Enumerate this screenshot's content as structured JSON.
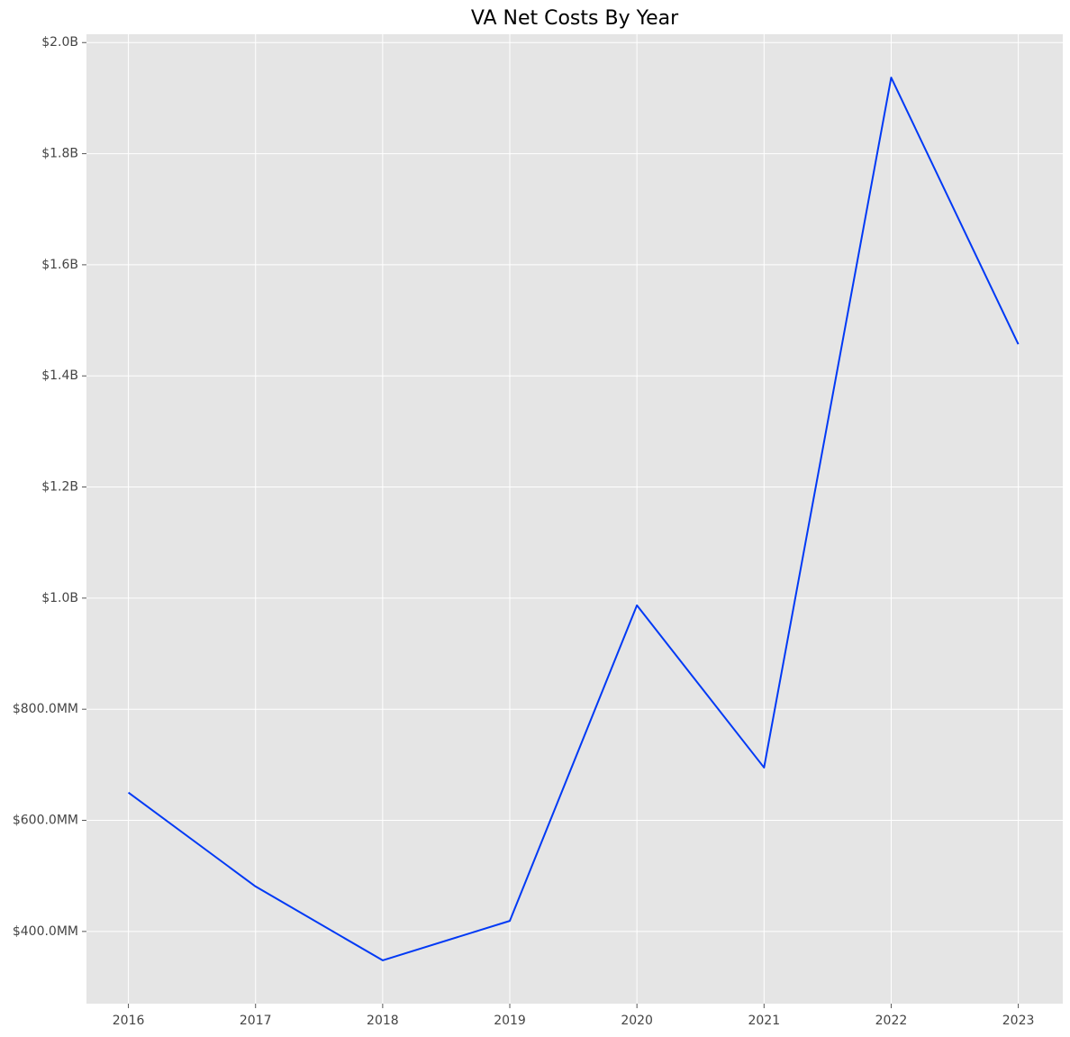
{
  "chart_data": {
    "type": "line",
    "title": "VA Net Costs By Year",
    "x": [
      2016,
      2017,
      2018,
      2019,
      2020,
      2021,
      2022,
      2023
    ],
    "values": [
      650000000,
      481000000,
      348000000,
      419000000,
      987000000,
      695000000,
      1937000000,
      1457000000
    ],
    "color": "#0039f5",
    "xlim": [
      2015.67,
      2023.35
    ],
    "xticks": [
      2016,
      2017,
      2018,
      2019,
      2020,
      2021,
      2022,
      2023
    ],
    "ylim": [
      270000000,
      2015000000
    ],
    "yticks": [
      {
        "value": 400000000,
        "label": "$400.0MM"
      },
      {
        "value": 600000000,
        "label": "$600.0MM"
      },
      {
        "value": 800000000,
        "label": "$800.0MM"
      },
      {
        "value": 1000000000,
        "label": "$1.0B"
      },
      {
        "value": 1200000000,
        "label": "$1.2B"
      },
      {
        "value": 1400000000,
        "label": "$1.4B"
      },
      {
        "value": 1600000000,
        "label": "$1.6B"
      },
      {
        "value": 1800000000,
        "label": "$1.8B"
      },
      {
        "value": 2000000000,
        "label": "$2.0B"
      }
    ],
    "grid": true
  }
}
